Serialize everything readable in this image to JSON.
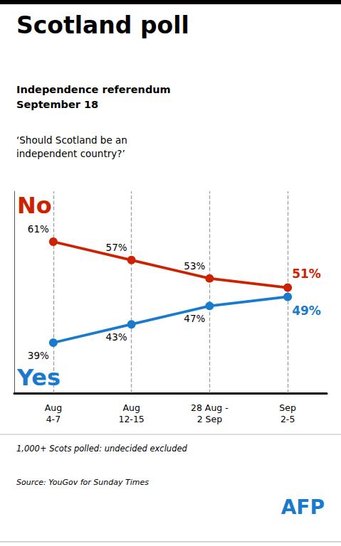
{
  "chart_data": {
    "type": "line",
    "title": "Scotland poll",
    "subtitle": [
      "Independence referendum\nSeptember 18",
      "‘Should Scotland be an\nindependent country?’"
    ],
    "footnote": "1,000+ Scots polled: undecided excluded",
    "source": "Source: YouGov for Sunday Times",
    "annotations": [
      {
        "text": "AFP",
        "color": "#1a7acc"
      }
    ],
    "categories": [
      "Aug\n4-7",
      "Aug\n12-15",
      "28 Aug -\n2 Sep",
      "Sep\n2-5"
    ],
    "series": [
      {
        "name": "No",
        "color": "#cc2200",
        "values": [
          61,
          57,
          53,
          51
        ],
        "value_labels": [
          "61%",
          "57%",
          "53%",
          "51%"
        ]
      },
      {
        "name": "Yes",
        "color": "#1a7acc",
        "values": [
          39,
          43,
          47,
          49
        ],
        "value_labels": [
          "39%",
          "43%",
          "47%",
          "49%"
        ]
      }
    ],
    "ylim": [
      28,
      72
    ],
    "grid": "x",
    "tick_labels": "x",
    "data_labels": true,
    "marker": "circle"
  }
}
